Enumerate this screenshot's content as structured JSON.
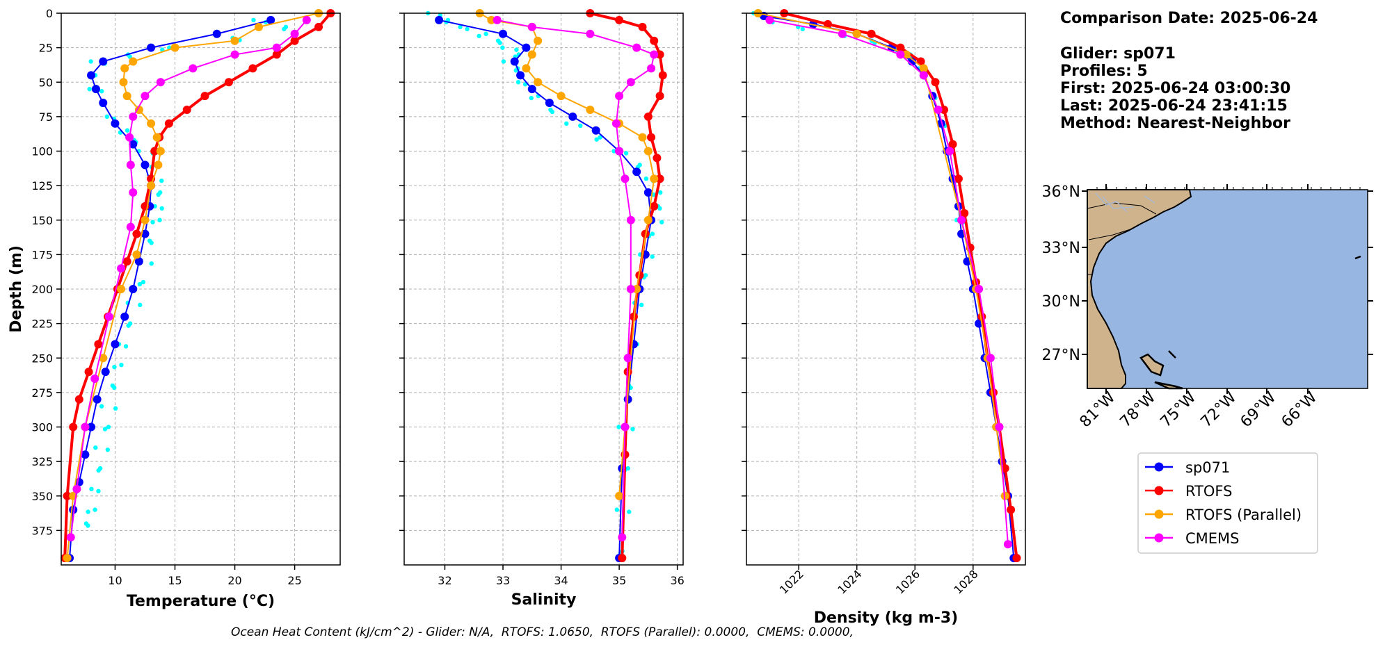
{
  "info": {
    "comparison_date": "Comparison Date: 2025-06-24",
    "glider": "Glider: sp071",
    "profiles": "Profiles: 5",
    "first": "First: 2025-06-24 03:00:30",
    "last": "Last: 2025-06-24 23:41:15",
    "method": "Method: Nearest-Neighbor"
  },
  "footer": "Ocean Heat Content (kJ/cm^2) - Glider: N/A,  RTOFS: 1.0650,  RTOFS (Parallel): 0.0000,  CMEMS: 0.0000,",
  "legend": [
    {
      "name": "sp071",
      "color": "#0000ff"
    },
    {
      "name": "RTOFS",
      "color": "#ff0000"
    },
    {
      "name": "RTOFS (Parallel)",
      "color": "#ffa500"
    },
    {
      "name": "CMEMS",
      "color": "#ff00ff"
    }
  ],
  "map": {
    "lat_ticks": [
      "36°N",
      "33°N",
      "30°N",
      "27°N"
    ],
    "lon_ticks": [
      "81°W",
      "78°W",
      "75°W",
      "72°W",
      "69°W",
      "66°W"
    ],
    "ocean_color": "#97b6e1",
    "land_color": "#cfb38c"
  },
  "chart_data": [
    {
      "type": "line",
      "xlabel": "Temperature (°C)",
      "ylabel": "Depth (m)",
      "xlim": [
        5.5,
        28.8
      ],
      "ylim": [
        400,
        0
      ],
      "xticks": [
        10,
        15,
        20,
        25
      ],
      "yticks": [
        0,
        25,
        50,
        75,
        100,
        125,
        150,
        175,
        200,
        225,
        250,
        275,
        300,
        325,
        350,
        375
      ],
      "grid": true,
      "glider_raw": [
        [
          22,
          5
        ],
        [
          24,
          10
        ],
        [
          20,
          18
        ],
        [
          14,
          25
        ],
        [
          11,
          30
        ],
        [
          8.5,
          35
        ],
        [
          8,
          45
        ],
        [
          8.3,
          55
        ],
        [
          8.8,
          65
        ],
        [
          9.5,
          75
        ],
        [
          10.5,
          85
        ],
        [
          11.5,
          92
        ],
        [
          12.5,
          100
        ],
        [
          13,
          110
        ],
        [
          13.3,
          120
        ],
        [
          13.5,
          130
        ],
        [
          13.5,
          140
        ],
        [
          13.2,
          150
        ],
        [
          12.8,
          165
        ],
        [
          12.4,
          180
        ],
        [
          12,
          195
        ],
        [
          11.5,
          210
        ],
        [
          11,
          225
        ],
        [
          10.5,
          240
        ],
        [
          10,
          255
        ],
        [
          9.7,
          270
        ],
        [
          9.4,
          285
        ],
        [
          9.1,
          300
        ],
        [
          8.8,
          315
        ],
        [
          8.5,
          330
        ],
        [
          8.2,
          345
        ],
        [
          7.8,
          360
        ],
        [
          7.5,
          370
        ]
      ],
      "series": [
        {
          "name": "sp071",
          "color": "#0000ff",
          "x": [
            23,
            18.5,
            13,
            9,
            8,
            8.4,
            9,
            10,
            11.5,
            12.5,
            13,
            12.9,
            12.5,
            12,
            11.5,
            10.8,
            10,
            9.2,
            8.5,
            8,
            7.5,
            7,
            6.5,
            6.2
          ],
          "y": [
            5,
            15,
            25,
            35,
            45,
            55,
            65,
            80,
            95,
            110,
            125,
            140,
            160,
            180,
            200,
            220,
            240,
            260,
            280,
            300,
            320,
            340,
            360,
            395
          ]
        },
        {
          "name": "RTOFS",
          "color": "#ff0000",
          "x": [
            28,
            27,
            25,
            23.5,
            21.5,
            19.5,
            17.5,
            16,
            14.5,
            13.7,
            13.3,
            13,
            12.5,
            11.8,
            11,
            10.2,
            9.4,
            8.6,
            7.8,
            7,
            6.5,
            6,
            5.8
          ],
          "y": [
            0,
            10,
            20,
            30,
            40,
            50,
            60,
            70,
            80,
            90,
            100,
            120,
            140,
            160,
            180,
            200,
            220,
            240,
            260,
            280,
            300,
            350,
            395
          ]
        },
        {
          "name": "RTOFS (Parallel)",
          "color": "#ffa500",
          "x": [
            27,
            22,
            20,
            15,
            11.5,
            10.8,
            10.7,
            11,
            12,
            13,
            13.5,
            13.8,
            13.6,
            13,
            12.5,
            11.8,
            10.5,
            9,
            7.5,
            6.5,
            6
          ],
          "y": [
            0,
            10,
            20,
            25,
            35,
            40,
            50,
            60,
            70,
            80,
            90,
            100,
            110,
            125,
            150,
            175,
            200,
            250,
            300,
            350,
            395
          ]
        },
        {
          "name": "CMEMS",
          "color": "#ff00ff",
          "x": [
            26,
            25,
            23.5,
            20,
            16.5,
            13.8,
            12.5,
            11.5,
            11.2,
            11.3,
            11.5,
            11.3,
            10.5,
            9.5,
            8.3,
            7.5,
            6.8,
            6.3
          ],
          "y": [
            5,
            15,
            25,
            30,
            40,
            50,
            60,
            75,
            90,
            110,
            130,
            155,
            185,
            220,
            265,
            300,
            345,
            380
          ]
        }
      ]
    },
    {
      "type": "line",
      "xlabel": "Salinity",
      "xlim": [
        31.3,
        36.1
      ],
      "ylim": [
        400,
        0
      ],
      "xticks": [
        32,
        33,
        34,
        35,
        36
      ],
      "grid": true,
      "glider_raw": [
        [
          31.8,
          0
        ],
        [
          32,
          5
        ],
        [
          32.3,
          10
        ],
        [
          32.6,
          15
        ],
        [
          32.9,
          20
        ],
        [
          33.1,
          25
        ],
        [
          33.2,
          30
        ],
        [
          33.1,
          35
        ],
        [
          33.2,
          40
        ],
        [
          33.3,
          50
        ],
        [
          33.5,
          60
        ],
        [
          33.8,
          70
        ],
        [
          34.2,
          80
        ],
        [
          34.6,
          90
        ],
        [
          35,
          100
        ],
        [
          35.3,
          110
        ],
        [
          35.5,
          120
        ],
        [
          35.6,
          130
        ],
        [
          35.65,
          140
        ],
        [
          35.6,
          150
        ],
        [
          35.5,
          160
        ],
        [
          35.45,
          175
        ],
        [
          35.4,
          190
        ],
        [
          35.3,
          210
        ],
        [
          35.2,
          240
        ],
        [
          35.15,
          270
        ],
        [
          35.1,
          300
        ],
        [
          35.08,
          330
        ],
        [
          35.05,
          360
        ],
        [
          35.0,
          390
        ]
      ],
      "series": [
        {
          "name": "sp071",
          "color": "#0000ff",
          "x": [
            31.9,
            33.0,
            33.4,
            33.2,
            33.3,
            33.5,
            33.8,
            34.2,
            34.6,
            35.0,
            35.3,
            35.5,
            35.55,
            35.45,
            35.35,
            35.25,
            35.15,
            35.05,
            35.0
          ],
          "y": [
            5,
            15,
            25,
            35,
            45,
            55,
            65,
            75,
            85,
            100,
            115,
            130,
            150,
            175,
            200,
            240,
            280,
            330,
            395
          ]
        },
        {
          "name": "RTOFS",
          "color": "#ff0000",
          "x": [
            34.5,
            35,
            35.4,
            35.6,
            35.7,
            35.75,
            35.7,
            35.5,
            35.55,
            35.65,
            35.7,
            35.6,
            35.45,
            35.35,
            35.25,
            35.15,
            35.1,
            35.05
          ],
          "y": [
            0,
            5,
            10,
            20,
            30,
            45,
            60,
            75,
            90,
            105,
            120,
            140,
            160,
            190,
            220,
            260,
            320,
            395
          ]
        },
        {
          "name": "RTOFS (Parallel)",
          "color": "#ffa500",
          "x": [
            32.6,
            32.8,
            33.5,
            33.6,
            33.5,
            33.4,
            33.6,
            34,
            34.5,
            35,
            35.4,
            35.5,
            35.6,
            35.5,
            35.3,
            35.1,
            35.0
          ],
          "y": [
            0,
            5,
            10,
            20,
            30,
            40,
            50,
            60,
            70,
            80,
            90,
            100,
            120,
            150,
            200,
            300,
            350
          ]
        },
        {
          "name": "CMEMS",
          "color": "#ff00ff",
          "x": [
            32.9,
            33.5,
            34.5,
            35.3,
            35.6,
            35.55,
            35.2,
            35,
            34.95,
            35,
            35.1,
            35.2,
            35.2,
            35.15,
            35.1,
            35.05
          ],
          "y": [
            5,
            10,
            15,
            25,
            30,
            40,
            50,
            60,
            80,
            100,
            120,
            150,
            200,
            250,
            300,
            380
          ]
        }
      ]
    },
    {
      "type": "line",
      "xlabel": "Density (kg m-3)",
      "xlim": [
        1020.2,
        1029.8
      ],
      "ylim": [
        400,
        0
      ],
      "xticks": [
        1022,
        1024,
        1026,
        1028
      ],
      "grid": true,
      "glider_raw": [
        [
          1020.5,
          0
        ],
        [
          1021,
          5
        ],
        [
          1022,
          10
        ],
        [
          1023.5,
          15
        ],
        [
          1024.5,
          20
        ],
        [
          1025.2,
          25
        ],
        [
          1025.8,
          30
        ],
        [
          1026.2,
          40
        ],
        [
          1026.6,
          60
        ],
        [
          1026.9,
          80
        ],
        [
          1027.1,
          100
        ],
        [
          1027.3,
          120
        ],
        [
          1027.5,
          150
        ]
      ],
      "series": [
        {
          "name": "sp071",
          "color": "#0000ff",
          "x": [
            1020.8,
            1022.5,
            1024,
            1025.2,
            1025.9,
            1026.3,
            1026.6,
            1026.9,
            1027.1,
            1027.3,
            1027.5,
            1027.6,
            1027.8,
            1028,
            1028.2,
            1028.4,
            1028.6,
            1028.8,
            1029,
            1029.2,
            1029.4
          ],
          "y": [
            2,
            8,
            15,
            25,
            35,
            45,
            60,
            80,
            100,
            120,
            140,
            160,
            180,
            200,
            225,
            250,
            275,
            300,
            325,
            350,
            395
          ]
        },
        {
          "name": "RTOFS",
          "color": "#ff0000",
          "x": [
            1021.5,
            1023,
            1024.5,
            1025.5,
            1026.2,
            1026.7,
            1027,
            1027.3,
            1027.5,
            1027.7,
            1027.9,
            1028.1,
            1028.3,
            1028.5,
            1028.7,
            1028.9,
            1029.1,
            1029.3,
            1029.5
          ],
          "y": [
            0,
            8,
            15,
            25,
            35,
            50,
            70,
            95,
            120,
            145,
            170,
            195,
            220,
            250,
            275,
            300,
            330,
            360,
            395
          ]
        },
        {
          "name": "RTOFS (Parallel)",
          "color": "#ffa500",
          "x": [
            1020.6,
            1024,
            1025.7,
            1026.3,
            1027.6,
            1028.1,
            1028.5,
            1028.8,
            1029.1
          ],
          "y": [
            0,
            15,
            30,
            40,
            150,
            200,
            250,
            300,
            350
          ]
        },
        {
          "name": "CMEMS",
          "color": "#ff00ff",
          "x": [
            1021,
            1023.5,
            1025.5,
            1026.3,
            1026.8,
            1027.2,
            1027.6,
            1028.2,
            1028.6,
            1028.9,
            1029.2
          ],
          "y": [
            5,
            15,
            30,
            45,
            70,
            100,
            150,
            200,
            250,
            300,
            385
          ]
        }
      ]
    }
  ]
}
